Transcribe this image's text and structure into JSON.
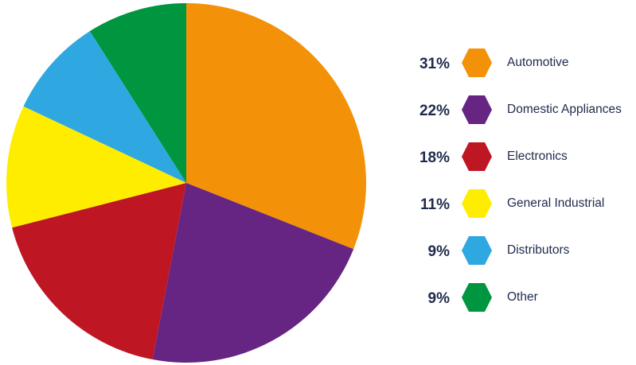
{
  "chart_data": {
    "type": "pie",
    "slices": [
      {
        "label": "Automotive",
        "value": 31,
        "percent_label": "31%",
        "color": "#f39208"
      },
      {
        "label": "Domestic Appliances",
        "value": 22,
        "percent_label": "22%",
        "color": "#662483"
      },
      {
        "label": "Electronics",
        "value": 18,
        "percent_label": "18%",
        "color": "#be1622"
      },
      {
        "label": "General Industrial",
        "value": 11,
        "percent_label": "11%",
        "color": "#ffed00"
      },
      {
        "label": "Distributors",
        "value": 9,
        "percent_label": "9%",
        "color": "#2fa8e1"
      },
      {
        "label": "Other",
        "value": 9,
        "percent_label": "9%",
        "color": "#009640"
      }
    ],
    "start_angle": "top",
    "direction": "clockwise",
    "legend_position": "right",
    "legend_marker": "hexagon"
  }
}
